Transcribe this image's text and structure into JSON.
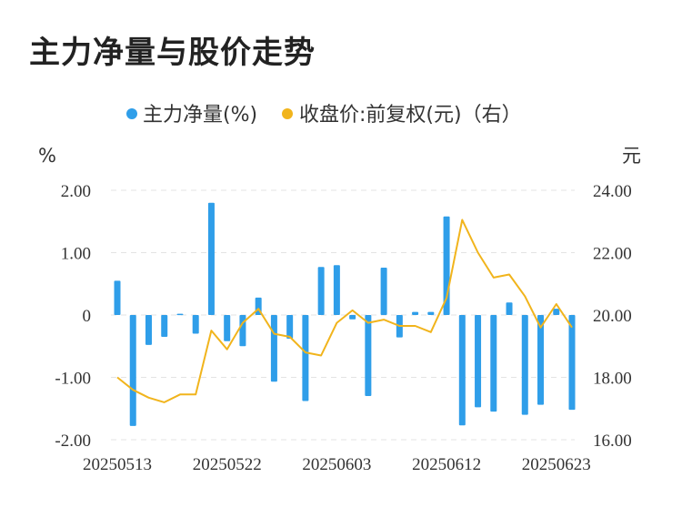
{
  "title": "主力净量与股价走势",
  "chart_data": {
    "type": "bar+line",
    "legend": {
      "placement": "top-center",
      "items": [
        {
          "label": "主力净量(%)",
          "color": "#2f9ee9"
        },
        {
          "label": "收盘价:前复权(元)（右）",
          "color": "#f1b41c"
        }
      ]
    },
    "y_left": {
      "unit": "%",
      "ticks": [
        "2.00",
        "1.00",
        "0",
        "-1.00",
        "-2.00"
      ],
      "range": [
        -2,
        2
      ]
    },
    "y_right": {
      "unit": "元",
      "ticks": [
        "24.00",
        "22.00",
        "20.00",
        "18.00",
        "16.00"
      ],
      "range": [
        16,
        24
      ]
    },
    "x_tick_labels": [
      "20250513",
      "20250522",
      "20250603",
      "20250612",
      "20250623"
    ],
    "x_tick_positions": [
      0,
      7,
      14,
      21,
      28
    ],
    "bars": [
      0.55,
      -1.78,
      -0.48,
      -0.35,
      0.02,
      -0.3,
      1.8,
      -0.42,
      -0.5,
      0.28,
      -1.07,
      -0.38,
      -1.38,
      0.77,
      0.8,
      -0.07,
      -1.3,
      0.76,
      -0.36,
      0.05,
      0.05,
      1.58,
      -1.77,
      -1.48,
      -1.55,
      0.2,
      -1.6,
      -1.44,
      0.1,
      -1.52
    ],
    "close_price": [
      18.0,
      17.6,
      17.35,
      17.2,
      17.45,
      17.45,
      19.5,
      18.9,
      19.75,
      20.2,
      19.4,
      19.3,
      18.8,
      18.7,
      19.75,
      20.15,
      19.75,
      19.85,
      19.65,
      19.65,
      19.45,
      20.55,
      23.05,
      22.0,
      21.2,
      21.3,
      20.6,
      19.6,
      20.35,
      19.6
    ],
    "grid": true
  }
}
